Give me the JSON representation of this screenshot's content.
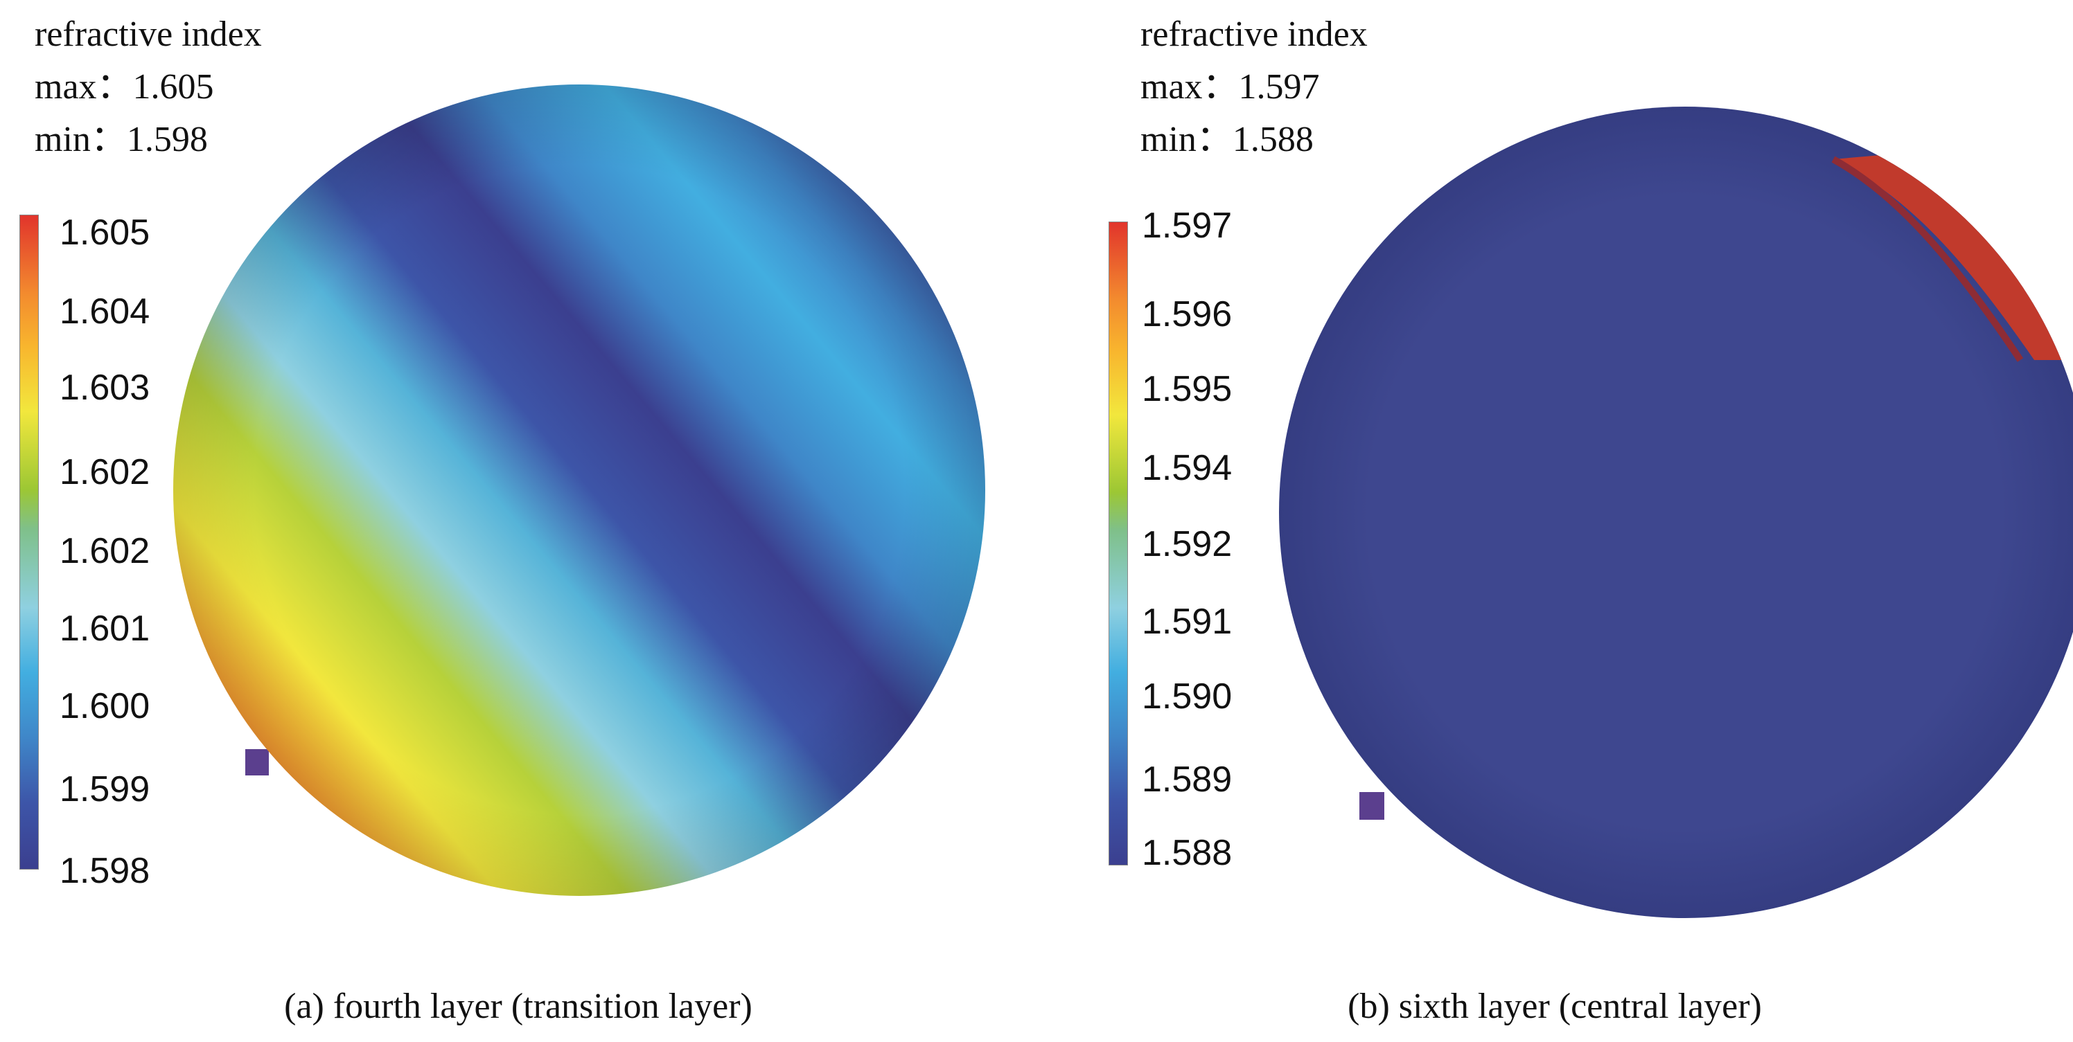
{
  "figure": {
    "colormap": [
      "#3b3f8f",
      "#3d55a8",
      "#3f86c8",
      "#42aee0",
      "#8fd0e0",
      "#7fc08a",
      "#9cc734",
      "#f2e73d",
      "#f8b52e",
      "#f38b2e",
      "#e1342c"
    ],
    "panels": [
      {
        "id": "a",
        "header": {
          "title": "refractive index",
          "max_label": "max：1.605",
          "min_label": "min：1.598"
        },
        "colorbar": {
          "ticks": [
            "1.605",
            "1.604",
            "1.603",
            "1.602",
            "1.602",
            "1.601",
            "1.600",
            "1.599",
            "1.598"
          ]
        },
        "caption": "(a)  fourth layer (transition layer)"
      },
      {
        "id": "b",
        "header": {
          "title": "refractive index",
          "max_label": "max：1.597",
          "min_label": "min：1.588"
        },
        "colorbar": {
          "ticks": [
            "1.597",
            "1.596",
            "1.595",
            "1.594",
            "1.592",
            "1.591",
            "1.590",
            "1.589",
            "1.588"
          ]
        },
        "caption": "(b)  sixth layer (central layer)"
      }
    ]
  }
}
